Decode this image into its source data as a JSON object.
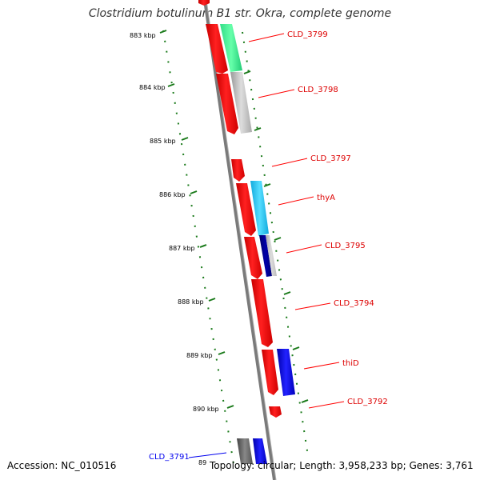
{
  "title": "Clostridium botulinum B1 str. Okra, complete genome",
  "accession": "Accession: NC_010516",
  "topology": "Topology: circular; Length: 3,958,233 bp; Genes: 3,761",
  "colors": {
    "backbone": "#808080",
    "tick": "#1a7a1a",
    "red": "#ff0000",
    "blue": "#0000ee",
    "dark_gray": "#555555"
  },
  "kbp_marks": [
    "883 kbp",
    "884 kbp",
    "885 kbp",
    "886 kbp",
    "887 kbp",
    "888 kbp",
    "889 kbp",
    "890 kbp",
    "89"
  ],
  "genes": [
    {
      "name": "CLD_3799",
      "color": "#ff0000"
    },
    {
      "name": "CLD_3798",
      "color": "#ff0000"
    },
    {
      "name": "CLD_3797",
      "color": "#ff0000"
    },
    {
      "name": "thyA",
      "color": "#ff0000"
    },
    {
      "name": "CLD_3795",
      "color": "#ff0000"
    },
    {
      "name": "CLD_3794",
      "color": "#ff0000"
    },
    {
      "name": "thiD",
      "color": "#ff0000"
    },
    {
      "name": "CLD_3792",
      "color": "#ff0000"
    },
    {
      "name": "CLD_3791",
      "color": "#0000ee"
    }
  ]
}
